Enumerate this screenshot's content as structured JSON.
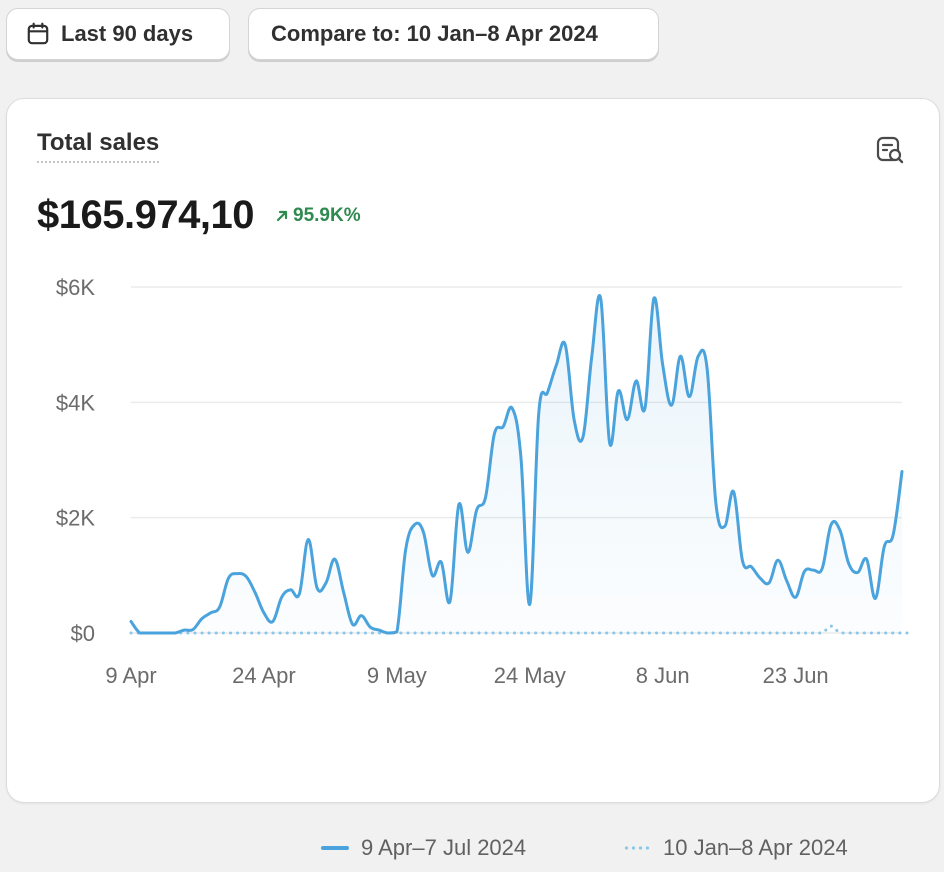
{
  "toolbar": {
    "date_range_label": "Last 90 days",
    "compare_label": "Compare to: 10 Jan–8 Apr 2024"
  },
  "card": {
    "title": "Total sales",
    "total_value": "$165.974,10",
    "delta": "95.9K%",
    "action_icon": "chart-search-icon"
  },
  "colors": {
    "current_series": "#4aa3dc",
    "previous_series": "#8cc6ea",
    "delta_positive": "#2f8a4f",
    "gridline": "#ebebeb"
  },
  "chart_data": {
    "type": "area",
    "title": "Total sales",
    "xlabel": "",
    "ylabel": "",
    "ylim": [
      0,
      6000
    ],
    "y_ticks": [
      0,
      2000,
      4000,
      6000
    ],
    "y_tick_labels": [
      "$0",
      "$2K",
      "$4K",
      "$6K"
    ],
    "x_tick_labels": [
      "9 Apr",
      "24 Apr",
      "9 May",
      "24 May",
      "8 Jun",
      "23 Jun"
    ],
    "x_tick_day_index": [
      0,
      15,
      30,
      45,
      60,
      75
    ],
    "grid": true,
    "legend_position": "bottom",
    "series": [
      {
        "name": "9 Apr–7 Jul 2024",
        "style": "solid-area",
        "values": [
          200,
          0,
          0,
          0,
          0,
          0,
          50,
          60,
          250,
          350,
          450,
          950,
          1030,
          980,
          700,
          350,
          200,
          620,
          750,
          680,
          1620,
          780,
          870,
          1280,
          700,
          150,
          300,
          100,
          50,
          0,
          20,
          1450,
          1880,
          1750,
          1000,
          1230,
          550,
          2230,
          1400,
          2130,
          2350,
          3450,
          3580,
          3900,
          3050,
          500,
          3800,
          4170,
          4650,
          5000,
          3700,
          3400,
          4800,
          5800,
          3300,
          4200,
          3700,
          4370,
          3900,
          5800,
          4650,
          3950,
          4800,
          4100,
          4800,
          4600,
          2250,
          1850,
          2450,
          1250,
          1150,
          950,
          870,
          1260,
          900,
          620,
          1070,
          1090,
          1120,
          1880,
          1780,
          1200,
          1050,
          1280,
          600,
          1500,
          1700,
          2800
        ]
      },
      {
        "name": "10 Jan–8 Apr 2024",
        "style": "dotted",
        "values": [
          0,
          0,
          0,
          0,
          0,
          0,
          0,
          0,
          0,
          0,
          0,
          0,
          0,
          0,
          0,
          0,
          0,
          0,
          0,
          0,
          0,
          0,
          0,
          0,
          0,
          0,
          0,
          0,
          0,
          0,
          0,
          0,
          0,
          0,
          0,
          0,
          0,
          0,
          0,
          0,
          0,
          0,
          0,
          0,
          0,
          0,
          0,
          0,
          0,
          0,
          0,
          0,
          0,
          0,
          0,
          0,
          0,
          0,
          0,
          0,
          0,
          0,
          0,
          0,
          0,
          0,
          0,
          0,
          0,
          0,
          0,
          0,
          0,
          0,
          0,
          0,
          0,
          0,
          0,
          120,
          0,
          0,
          0,
          0,
          0,
          0,
          0,
          0,
          0
        ]
      }
    ]
  }
}
